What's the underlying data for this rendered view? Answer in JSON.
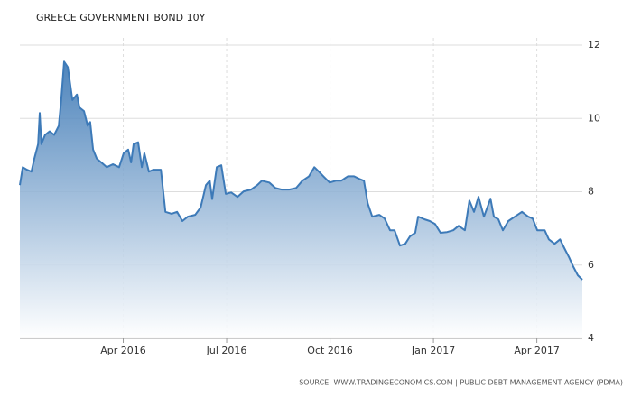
{
  "chart_data": {
    "type": "area",
    "title": "GREECE GOVERNMENT BOND 10Y",
    "source": "SOURCE: WWW.TRADINGECONOMICS.COM | PUBLIC DEBT MANAGEMENT AGENCY (PDMA)",
    "color": "#3d7ab8",
    "x": [
      2016.0,
      2016.007,
      2016.017,
      2016.028,
      2016.035,
      2016.044,
      2016.048,
      2016.052,
      2016.061,
      2016.072,
      2016.083,
      2016.094,
      2016.1,
      2016.107,
      2016.116,
      2016.127,
      2016.138,
      2016.144,
      2016.155,
      2016.164,
      2016.17,
      2016.177,
      2016.186,
      2016.197,
      2016.21,
      2016.225,
      2016.24,
      2016.251,
      2016.262,
      2016.269,
      2016.275,
      2016.286,
      2016.295,
      2016.301,
      2016.312,
      2016.323,
      2016.341,
      2016.352,
      2016.367,
      2016.38,
      2016.393,
      2016.406,
      2016.424,
      2016.437,
      2016.45,
      2016.459,
      2016.465,
      2016.476,
      2016.487,
      2016.498,
      2016.511,
      2016.526,
      2016.541,
      2016.559,
      2016.574,
      2016.585,
      2016.603,
      2016.618,
      2016.633,
      2016.651,
      2016.668,
      2016.683,
      2016.699,
      2016.712,
      2016.723,
      2016.734,
      2016.749,
      2016.764,
      2016.777,
      2016.793,
      2016.808,
      2016.821,
      2016.832,
      2016.841,
      2016.852,
      2016.869,
      2016.882,
      2016.895,
      2016.906,
      2016.919,
      2016.932,
      2016.943,
      2016.956,
      2016.963,
      2016.978,
      2016.991,
      2017.004,
      2017.017,
      2017.033,
      2017.048,
      2017.061,
      2017.076,
      2017.087,
      2017.098,
      2017.109,
      2017.122,
      2017.138,
      2017.146,
      2017.157,
      2017.168,
      2017.181,
      2017.197,
      2017.214,
      2017.229,
      2017.24,
      2017.251,
      2017.269,
      2017.279,
      2017.293,
      2017.306,
      2017.317,
      2017.328,
      2017.338,
      2017.349,
      2017.36
    ],
    "values": [
      8.18,
      8.67,
      8.6,
      8.55,
      8.9,
      9.3,
      10.15,
      9.3,
      9.55,
      9.65,
      9.55,
      9.8,
      10.5,
      11.55,
      11.4,
      10.5,
      10.65,
      10.3,
      10.2,
      9.8,
      9.9,
      9.15,
      8.9,
      8.8,
      8.67,
      8.75,
      8.67,
      9.05,
      9.15,
      8.8,
      9.3,
      9.35,
      8.67,
      9.05,
      8.55,
      8.6,
      8.6,
      7.45,
      7.4,
      7.45,
      7.2,
      7.32,
      7.37,
      7.57,
      8.18,
      8.3,
      7.8,
      8.67,
      8.72,
      7.94,
      7.98,
      7.86,
      8.01,
      8.06,
      8.18,
      8.3,
      8.25,
      8.1,
      8.06,
      8.06,
      8.1,
      8.3,
      8.42,
      8.67,
      8.55,
      8.42,
      8.25,
      8.3,
      8.3,
      8.42,
      8.42,
      8.35,
      8.3,
      7.68,
      7.32,
      7.37,
      7.27,
      6.95,
      6.95,
      6.53,
      6.58,
      6.78,
      6.88,
      7.32,
      7.25,
      7.2,
      7.12,
      6.88,
      6.9,
      6.95,
      7.07,
      6.95,
      7.76,
      7.45,
      7.86,
      7.32,
      7.81,
      7.32,
      7.25,
      6.95,
      7.2,
      7.32,
      7.45,
      7.32,
      7.27,
      6.95,
      6.95,
      6.7,
      6.58,
      6.7,
      6.45,
      6.21,
      5.96,
      5.72,
      5.6
    ],
    "xlim": [
      2016.0,
      2017.36
    ],
    "xticks": [
      {
        "value": 2016.25,
        "label": "Apr 2016"
      },
      {
        "value": 2016.5,
        "label": "Jul 2016"
      },
      {
        "value": 2016.75,
        "label": "Oct 2016"
      },
      {
        "value": 2017.0,
        "label": "Jan 2017"
      },
      {
        "value": 2017.25,
        "label": "Apr 2017"
      }
    ],
    "ylim": [
      4,
      12
    ],
    "yticks": [
      4,
      6,
      8,
      10,
      12
    ],
    "grid": true
  }
}
